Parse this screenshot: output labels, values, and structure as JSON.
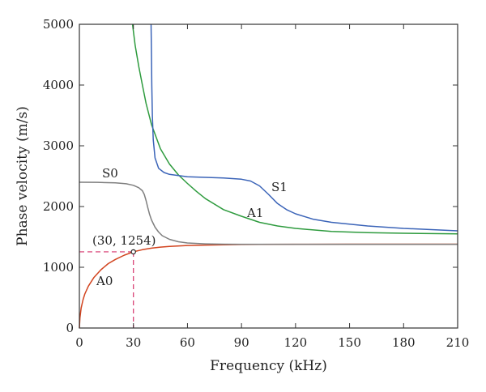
{
  "chart_data": {
    "type": "line",
    "title": "",
    "xlabel": "Frequency (kHz)",
    "ylabel": "Phase velocity (m/s)",
    "xlim": [
      0,
      210
    ],
    "ylim": [
      0,
      5000
    ],
    "xticks": [
      0,
      30,
      60,
      90,
      120,
      150,
      180,
      210
    ],
    "yticks": [
      0,
      1000,
      2000,
      3000,
      4000,
      5000
    ],
    "grid": false,
    "legend": "none",
    "series": [
      {
        "name": "A0",
        "color": "#d2441f",
        "x": [
          0,
          0.3,
          1,
          2,
          3,
          5,
          8,
          12,
          16,
          20,
          25,
          30,
          35,
          40,
          45,
          50,
          60,
          70,
          80,
          90,
          100,
          120,
          150,
          180,
          210
        ],
        "y": [
          0,
          170,
          330,
          460,
          560,
          690,
          830,
          960,
          1060,
          1130,
          1200,
          1254,
          1290,
          1315,
          1332,
          1344,
          1358,
          1366,
          1371,
          1374,
          1376,
          1378,
          1380,
          1380,
          1380
        ]
      },
      {
        "name": "S0",
        "color": "#7f7f7f",
        "x": [
          0,
          10,
          20,
          26,
          30,
          33,
          35,
          36,
          37,
          38,
          39,
          40,
          42,
          44,
          46,
          50,
          55,
          60,
          70,
          80,
          90,
          100,
          120,
          150,
          180,
          210
        ],
        "y": [
          2400,
          2398,
          2390,
          2375,
          2350,
          2310,
          2260,
          2200,
          2100,
          1980,
          1870,
          1780,
          1660,
          1580,
          1520,
          1460,
          1420,
          1400,
          1385,
          1380,
          1378,
          1378,
          1378,
          1378,
          1378,
          1378
        ]
      },
      {
        "name": "A1",
        "color": "#2e9b3e",
        "x": [
          29.5,
          31,
          33,
          35,
          37,
          40,
          45,
          50,
          55,
          60,
          65,
          70,
          80,
          90,
          100,
          110,
          120,
          140,
          160,
          180,
          210
        ],
        "y": [
          5000,
          4650,
          4300,
          4000,
          3700,
          3350,
          2950,
          2700,
          2520,
          2380,
          2250,
          2130,
          1950,
          1840,
          1740,
          1680,
          1640,
          1590,
          1570,
          1560,
          1550
        ]
      },
      {
        "name": "S1",
        "color": "#3b64b8",
        "x": [
          39.8,
          40.0,
          40.2,
          40.5,
          41,
          42,
          44,
          47,
          50,
          55,
          60,
          70,
          80,
          90,
          95,
          100,
          105,
          110,
          115,
          120,
          130,
          140,
          160,
          180,
          210
        ],
        "y": [
          5000,
          4500,
          4000,
          3500,
          3100,
          2800,
          2630,
          2560,
          2530,
          2510,
          2490,
          2480,
          2470,
          2450,
          2420,
          2340,
          2200,
          2050,
          1950,
          1880,
          1790,
          1740,
          1680,
          1640,
          1600
        ]
      }
    ],
    "annotations": [
      {
        "text": "(30, 1254)",
        "x": 30,
        "y": 1254,
        "marker": "open-circle",
        "guide_color": "#d6336c"
      }
    ]
  }
}
